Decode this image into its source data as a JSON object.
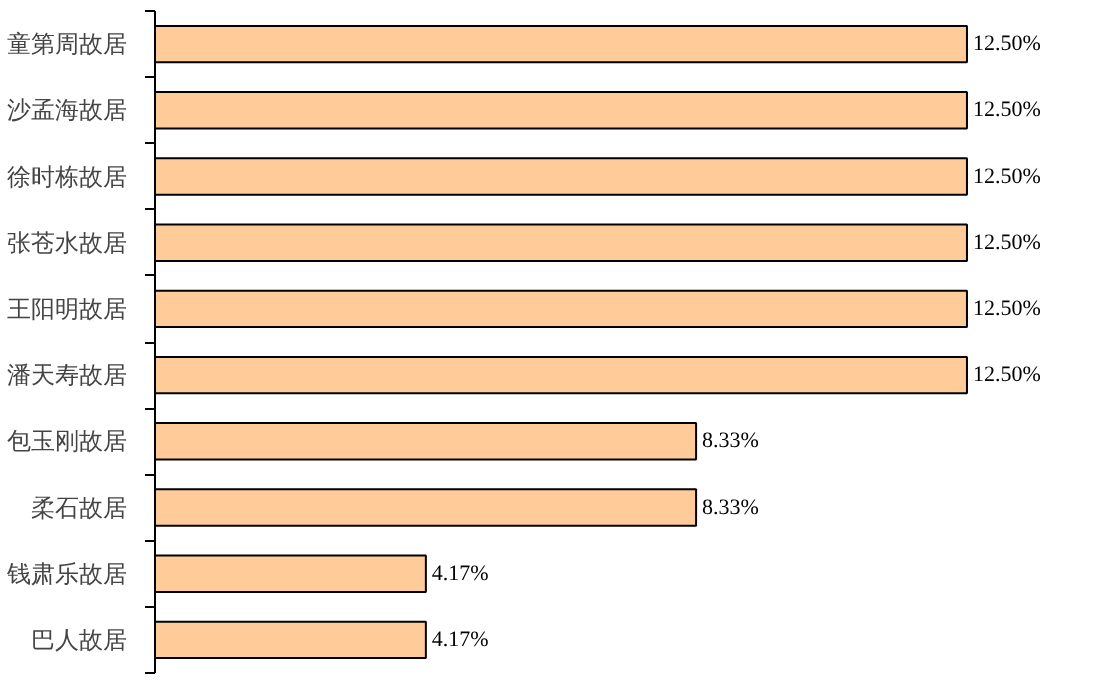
{
  "chart_data": {
    "type": "bar",
    "orientation": "horizontal",
    "categories": [
      "童第周故居",
      "沙孟海故居",
      "徐时栋故居",
      "张苍水故居",
      "王阳明故居",
      "潘天寿故居",
      "包玉刚故居",
      "柔石故居",
      "钱肃乐故居",
      "巴人故居"
    ],
    "values": [
      12.5,
      12.5,
      12.5,
      12.5,
      12.5,
      12.5,
      8.33,
      8.33,
      4.17,
      4.17
    ],
    "value_labels": [
      "12.50%",
      "12.50%",
      "12.50%",
      "12.50%",
      "12.50%",
      "12.50%",
      "8.33%",
      "8.33%",
      "4.17%",
      "4.17%"
    ],
    "color": "#ffcc99",
    "grid": false
  }
}
